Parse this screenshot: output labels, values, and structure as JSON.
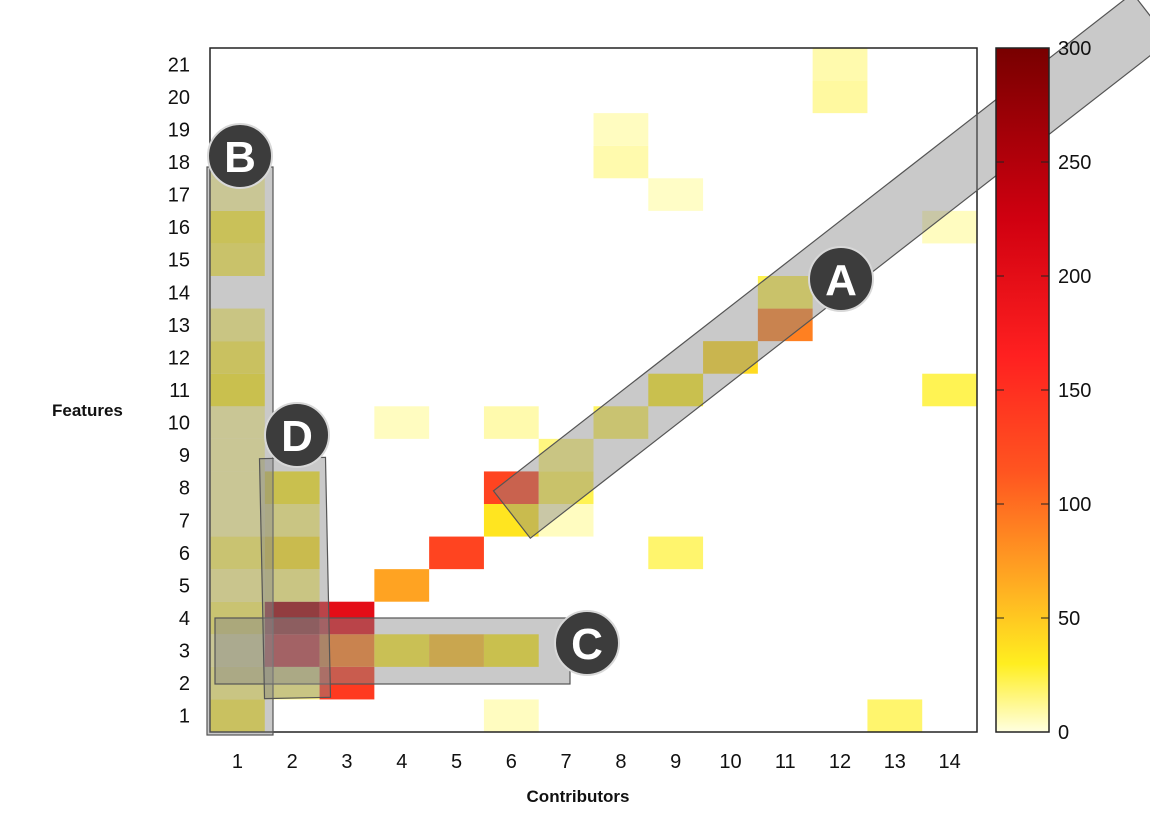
{
  "chart_data": {
    "type": "heatmap",
    "xlabel": "Contributors",
    "ylabel": "Features",
    "x_categories": [
      "1",
      "2",
      "3",
      "4",
      "5",
      "6",
      "7",
      "8",
      "9",
      "10",
      "11",
      "12",
      "13",
      "14"
    ],
    "y_categories": [
      "1",
      "2",
      "3",
      "4",
      "5",
      "6",
      "7",
      "8",
      "9",
      "10",
      "11",
      "12",
      "13",
      "14",
      "15",
      "16",
      "17",
      "18",
      "19",
      "20",
      "21"
    ],
    "colorbar": {
      "min": 0,
      "max": 300,
      "ticks": [
        "0",
        "50",
        "100",
        "150",
        "200",
        "250",
        "300"
      ]
    },
    "cells": [
      {
        "x": 1,
        "y": 1,
        "v": 25
      },
      {
        "x": 1,
        "y": 2,
        "v": 15
      },
      {
        "x": 1,
        "y": 3,
        "v": 10
      },
      {
        "x": 1,
        "y": 4,
        "v": 20
      },
      {
        "x": 1,
        "y": 5,
        "v": 12
      },
      {
        "x": 1,
        "y": 6,
        "v": 20
      },
      {
        "x": 1,
        "y": 7,
        "v": 10
      },
      {
        "x": 1,
        "y": 8,
        "v": 10
      },
      {
        "x": 1,
        "y": 9,
        "v": 10
      },
      {
        "x": 1,
        "y": 10,
        "v": 10
      },
      {
        "x": 1,
        "y": 11,
        "v": 30
      },
      {
        "x": 1,
        "y": 12,
        "v": 25
      },
      {
        "x": 1,
        "y": 13,
        "v": 15
      },
      {
        "x": 1,
        "y": 15,
        "v": 22
      },
      {
        "x": 1,
        "y": 16,
        "v": 27
      },
      {
        "x": 1,
        "y": 17,
        "v": 10
      },
      {
        "x": 1,
        "y": 18,
        "v": 10
      },
      {
        "x": 2,
        "y": 2,
        "v": 15
      },
      {
        "x": 2,
        "y": 3,
        "v": 200
      },
      {
        "x": 2,
        "y": 4,
        "v": 270
      },
      {
        "x": 2,
        "y": 5,
        "v": 15
      },
      {
        "x": 2,
        "y": 6,
        "v": 35
      },
      {
        "x": 2,
        "y": 7,
        "v": 15
      },
      {
        "x": 2,
        "y": 8,
        "v": 30
      },
      {
        "x": 3,
        "y": 2,
        "v": 140
      },
      {
        "x": 3,
        "y": 3,
        "v": 90
      },
      {
        "x": 3,
        "y": 4,
        "v": 200
      },
      {
        "x": 4,
        "y": 3,
        "v": 28
      },
      {
        "x": 4,
        "y": 5,
        "v": 70
      },
      {
        "x": 4,
        "y": 10,
        "v": 5
      },
      {
        "x": 5,
        "y": 3,
        "v": 55
      },
      {
        "x": 5,
        "y": 6,
        "v": 130
      },
      {
        "x": 6,
        "y": 1,
        "v": 5
      },
      {
        "x": 6,
        "y": 3,
        "v": 30
      },
      {
        "x": 6,
        "y": 7,
        "v": 35
      },
      {
        "x": 6,
        "y": 8,
        "v": 130
      },
      {
        "x": 6,
        "y": 10,
        "v": 8
      },
      {
        "x": 7,
        "y": 7,
        "v": 5
      },
      {
        "x": 7,
        "y": 8,
        "v": 22
      },
      {
        "x": 7,
        "y": 9,
        "v": 15
      },
      {
        "x": 8,
        "y": 10,
        "v": 20
      },
      {
        "x": 8,
        "y": 18,
        "v": 8
      },
      {
        "x": 8,
        "y": 19,
        "v": 5
      },
      {
        "x": 9,
        "y": 6,
        "v": 18
      },
      {
        "x": 9,
        "y": 11,
        "v": 30
      },
      {
        "x": 9,
        "y": 17,
        "v": 4
      },
      {
        "x": 10,
        "y": 12,
        "v": 40
      },
      {
        "x": 11,
        "y": 13,
        "v": 90
      },
      {
        "x": 11,
        "y": 14,
        "v": 22
      },
      {
        "x": 12,
        "y": 20,
        "v": 10
      },
      {
        "x": 12,
        "y": 21,
        "v": 8
      },
      {
        "x": 13,
        "y": 1,
        "v": 18
      },
      {
        "x": 14,
        "y": 11,
        "v": 22
      },
      {
        "x": 14,
        "y": 16,
        "v": 5
      }
    ],
    "callouts": [
      {
        "label": "A"
      },
      {
        "label": "B"
      },
      {
        "label": "C"
      },
      {
        "label": "D"
      }
    ]
  }
}
